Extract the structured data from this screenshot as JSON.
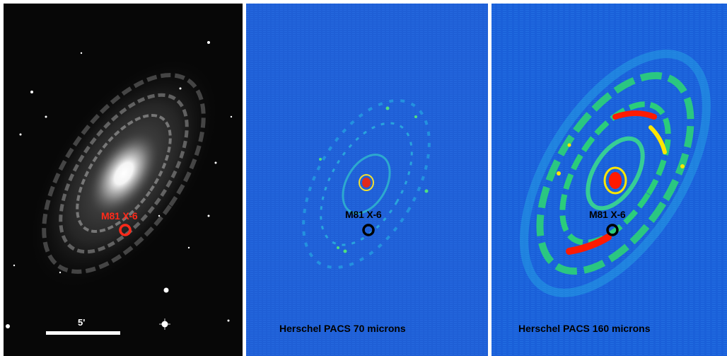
{
  "panels": [
    {
      "source_label": "M81 X-6",
      "scale_label": "5'"
    },
    {
      "source_label": "M81 X-6",
      "caption": "Herschel PACS 70 microns"
    },
    {
      "source_label": "M81 X-6",
      "caption": "Herschel PACS 160 microns"
    }
  ],
  "colors": {
    "optical_marker": "#ff2a1a",
    "ir_marker": "#000000",
    "ir_background": "#1f5fd6",
    "ir_hot": "#ff1a00",
    "ir_warm": "#ffe600",
    "ir_mid": "#2ee06a"
  }
}
